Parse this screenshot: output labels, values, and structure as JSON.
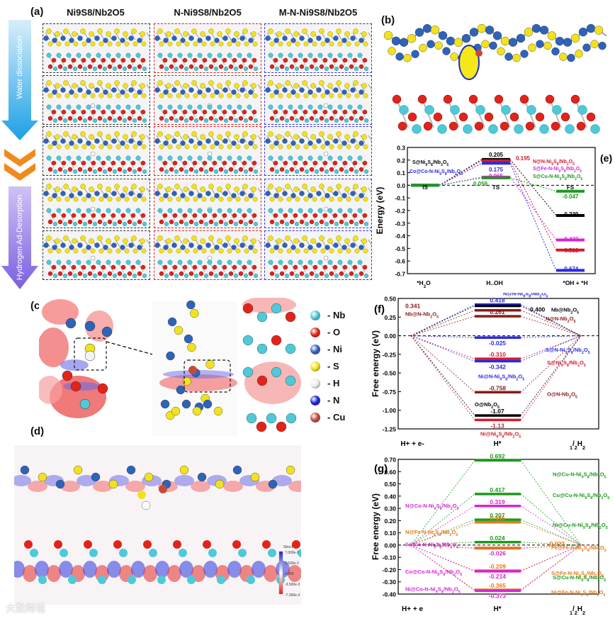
{
  "panel_a": {
    "label": "(a)",
    "columns": [
      "Ni9S8/Nb2O5",
      "N-Ni9S8/Nb2O5",
      "M-N-Ni9S8/Nb2O5"
    ],
    "arrow_top": "Water dissociation",
    "arrow_bottom": "Hydrogen Ad-Desorption"
  },
  "panel_b": {
    "label": "(b)"
  },
  "panel_c": {
    "label": "(c)",
    "legend": [
      {
        "symbol": "Nb",
        "text": "- Nb",
        "color": "#4fc9d8"
      },
      {
        "symbol": "O",
        "text": "- O",
        "color": "#e2231a"
      },
      {
        "symbol": "Ni",
        "text": "- Ni",
        "color": "#2f63b8"
      },
      {
        "symbol": "S",
        "text": "- S",
        "color": "#f2e21d"
      },
      {
        "symbol": "H",
        "text": "- H",
        "color": "#eeeeee"
      },
      {
        "symbol": "N",
        "text": "- N",
        "color": "#1c22d6"
      },
      {
        "symbol": "Cu",
        "text": "- Cu",
        "color": "#c44a3a"
      }
    ]
  },
  "panel_d": {
    "label": "(d)",
    "colorbar": {
      "title": "Slice1",
      "ticks": [
        "7.000e-2",
        "3.500e-2",
        "0.000",
        "-3.500e-2",
        "-7.000e-2"
      ]
    }
  },
  "watermark": "大数跨境",
  "chart_data": [
    {
      "type": "line",
      "panel": "(e)",
      "ylabel": "Energy (eV)",
      "ylim": [
        -0.7,
        0.3
      ],
      "yticks": [
        "0.3",
        "0.2",
        "0.1",
        "0.0",
        "-0.1",
        "-0.2",
        "-0.3",
        "-0.4",
        "-0.5",
        "-0.6",
        "-0.7"
      ],
      "categories": [
        "*H2O",
        "H..OH",
        "*OH + *H"
      ],
      "stage_labels": [
        "IS",
        "TS",
        "FS"
      ],
      "series": [
        {
          "name": "S@Ni9S8/Nb2O5",
          "color": "#000000",
          "values": [
            0,
            0.205,
            -0.239
          ]
        },
        {
          "name": "N@N-Ni9S8/Nb2O5",
          "color": "#d01c2c",
          "values": [
            0,
            0.195,
            -0.513
          ]
        },
        {
          "name": "S@Fe-N-Ni9S8/Nb2O5",
          "color": "#d526d5",
          "values": [
            0,
            0.065,
            -0.433
          ]
        },
        {
          "name": "Co@Co-N-Ni9S8/Nb2O5",
          "color": "#2a2ae0",
          "values": [
            0,
            0.175,
            -0.674
          ]
        },
        {
          "name": "S@Cu-N-Ni9S8/Nb2O5",
          "color": "#1a9a1a",
          "values": [
            0,
            0.059,
            -0.047
          ]
        }
      ],
      "value_labels": [
        "0.205",
        "0.195",
        "0.175",
        "0.065",
        "0.059",
        "-0.047",
        "-0.239",
        "-0.433",
        "-0.513",
        "-0.674"
      ]
    },
    {
      "type": "line",
      "panel": "(f)",
      "ylabel": "Free energy (eV)",
      "ylim": [
        -1.25,
        0.5
      ],
      "yticks": [
        "0.50",
        "0.25",
        "0.00",
        "-0.25",
        "-0.50",
        "-0.75",
        "-1.00",
        "-1.25"
      ],
      "categories": [
        "H+ + e-",
        "H*",
        "1/2H2"
      ],
      "series": [
        {
          "name": "N@N-Ni9S8/Nb2O5",
          "color": "#2a2ae0",
          "value": 0.418
        },
        {
          "name": "Nb@Nb2O5",
          "color": "#000000",
          "value": 0.4
        },
        {
          "name": "Nb@N-Nb2O5",
          "color": "#8b1a1a",
          "value": 0.341
        },
        {
          "name": "N@N-Nb2O5",
          "color": "#8b1a1a",
          "value": 0.261
        },
        {
          "name": "S@N-Ni9S8/Nb2O5",
          "color": "#2a2ae0",
          "value": -0.025
        },
        {
          "name": "S@Ni9S8/Nb2O5",
          "color": "#d01c2c",
          "value": -0.31
        },
        {
          "name": "Ni@N-Ni9S8/Nb2O5",
          "color": "#2a2ae0",
          "value": -0.342
        },
        {
          "name": "O@N-Nb2O5",
          "color": "#8b1a1a",
          "value": -0.758
        },
        {
          "name": "O@Nb2O5",
          "color": "#000000",
          "value": -1.07
        },
        {
          "name": "Ni@Ni9S8/Nb2O5",
          "color": "#d01c2c",
          "value": -1.13
        }
      ]
    },
    {
      "type": "line",
      "panel": "(g)",
      "ylabel": "Free energy (eV)",
      "ylim": [
        -0.4,
        0.7
      ],
      "yticks": [
        "0.70",
        "0.60",
        "0.50",
        "0.40",
        "0.30",
        "0.20",
        "0.10",
        "0.00",
        "-0.10",
        "-0.20",
        "-0.30",
        "-0.40"
      ],
      "categories": [
        "H+ + e",
        "H*",
        "1/2H2"
      ],
      "series": [
        {
          "name": "N@Cu-N-Ni9S8/Nb2O5",
          "color": "#1a9a1a",
          "value": 0.692
        },
        {
          "name": "Cu@Cu-N-Ni9S8/Nb2O5",
          "color": "#1a9a1a",
          "value": 0.417
        },
        {
          "name": "N@Co-N-Ni9S8/Nb2O5",
          "color": "#d526d5",
          "value": 0.319
        },
        {
          "name": "Ni@Cu-N-Ni9S8/Nb2O5",
          "color": "#1a9a1a",
          "value": 0.207
        },
        {
          "name": "N@Fe-N-Ni9S8/Nb2O5",
          "color": "#e07b16",
          "value": 0.186
        },
        {
          "name": "S@Cu-N-Ni9S8/Nb2O5",
          "color": "#1a9a1a",
          "value": 0.024
        },
        {
          "name": "S@Co-N-Ni9S8/Nb2O5",
          "color": "#d526d5",
          "value": -0.026
        },
        {
          "name": "Fe@Fe-N-Ni9S8/Nb2O5",
          "color": "#e07b16",
          "value": -0.023
        },
        {
          "name": "S@Fe-N-Ni9S8/Nb2O5",
          "color": "#e07b16",
          "value": -0.209
        },
        {
          "name": "Co@Co-N-Ni9S8/Nb2O5",
          "color": "#d526d5",
          "value": -0.214
        },
        {
          "name": "Ni@Fe-N-Ni9S8/Nb2O5",
          "color": "#e07b16",
          "value": -0.365
        },
        {
          "name": "Ni@Co-N-Ni9S8/Nb2O5",
          "color": "#d526d5",
          "value": -0.373
        }
      ]
    }
  ]
}
